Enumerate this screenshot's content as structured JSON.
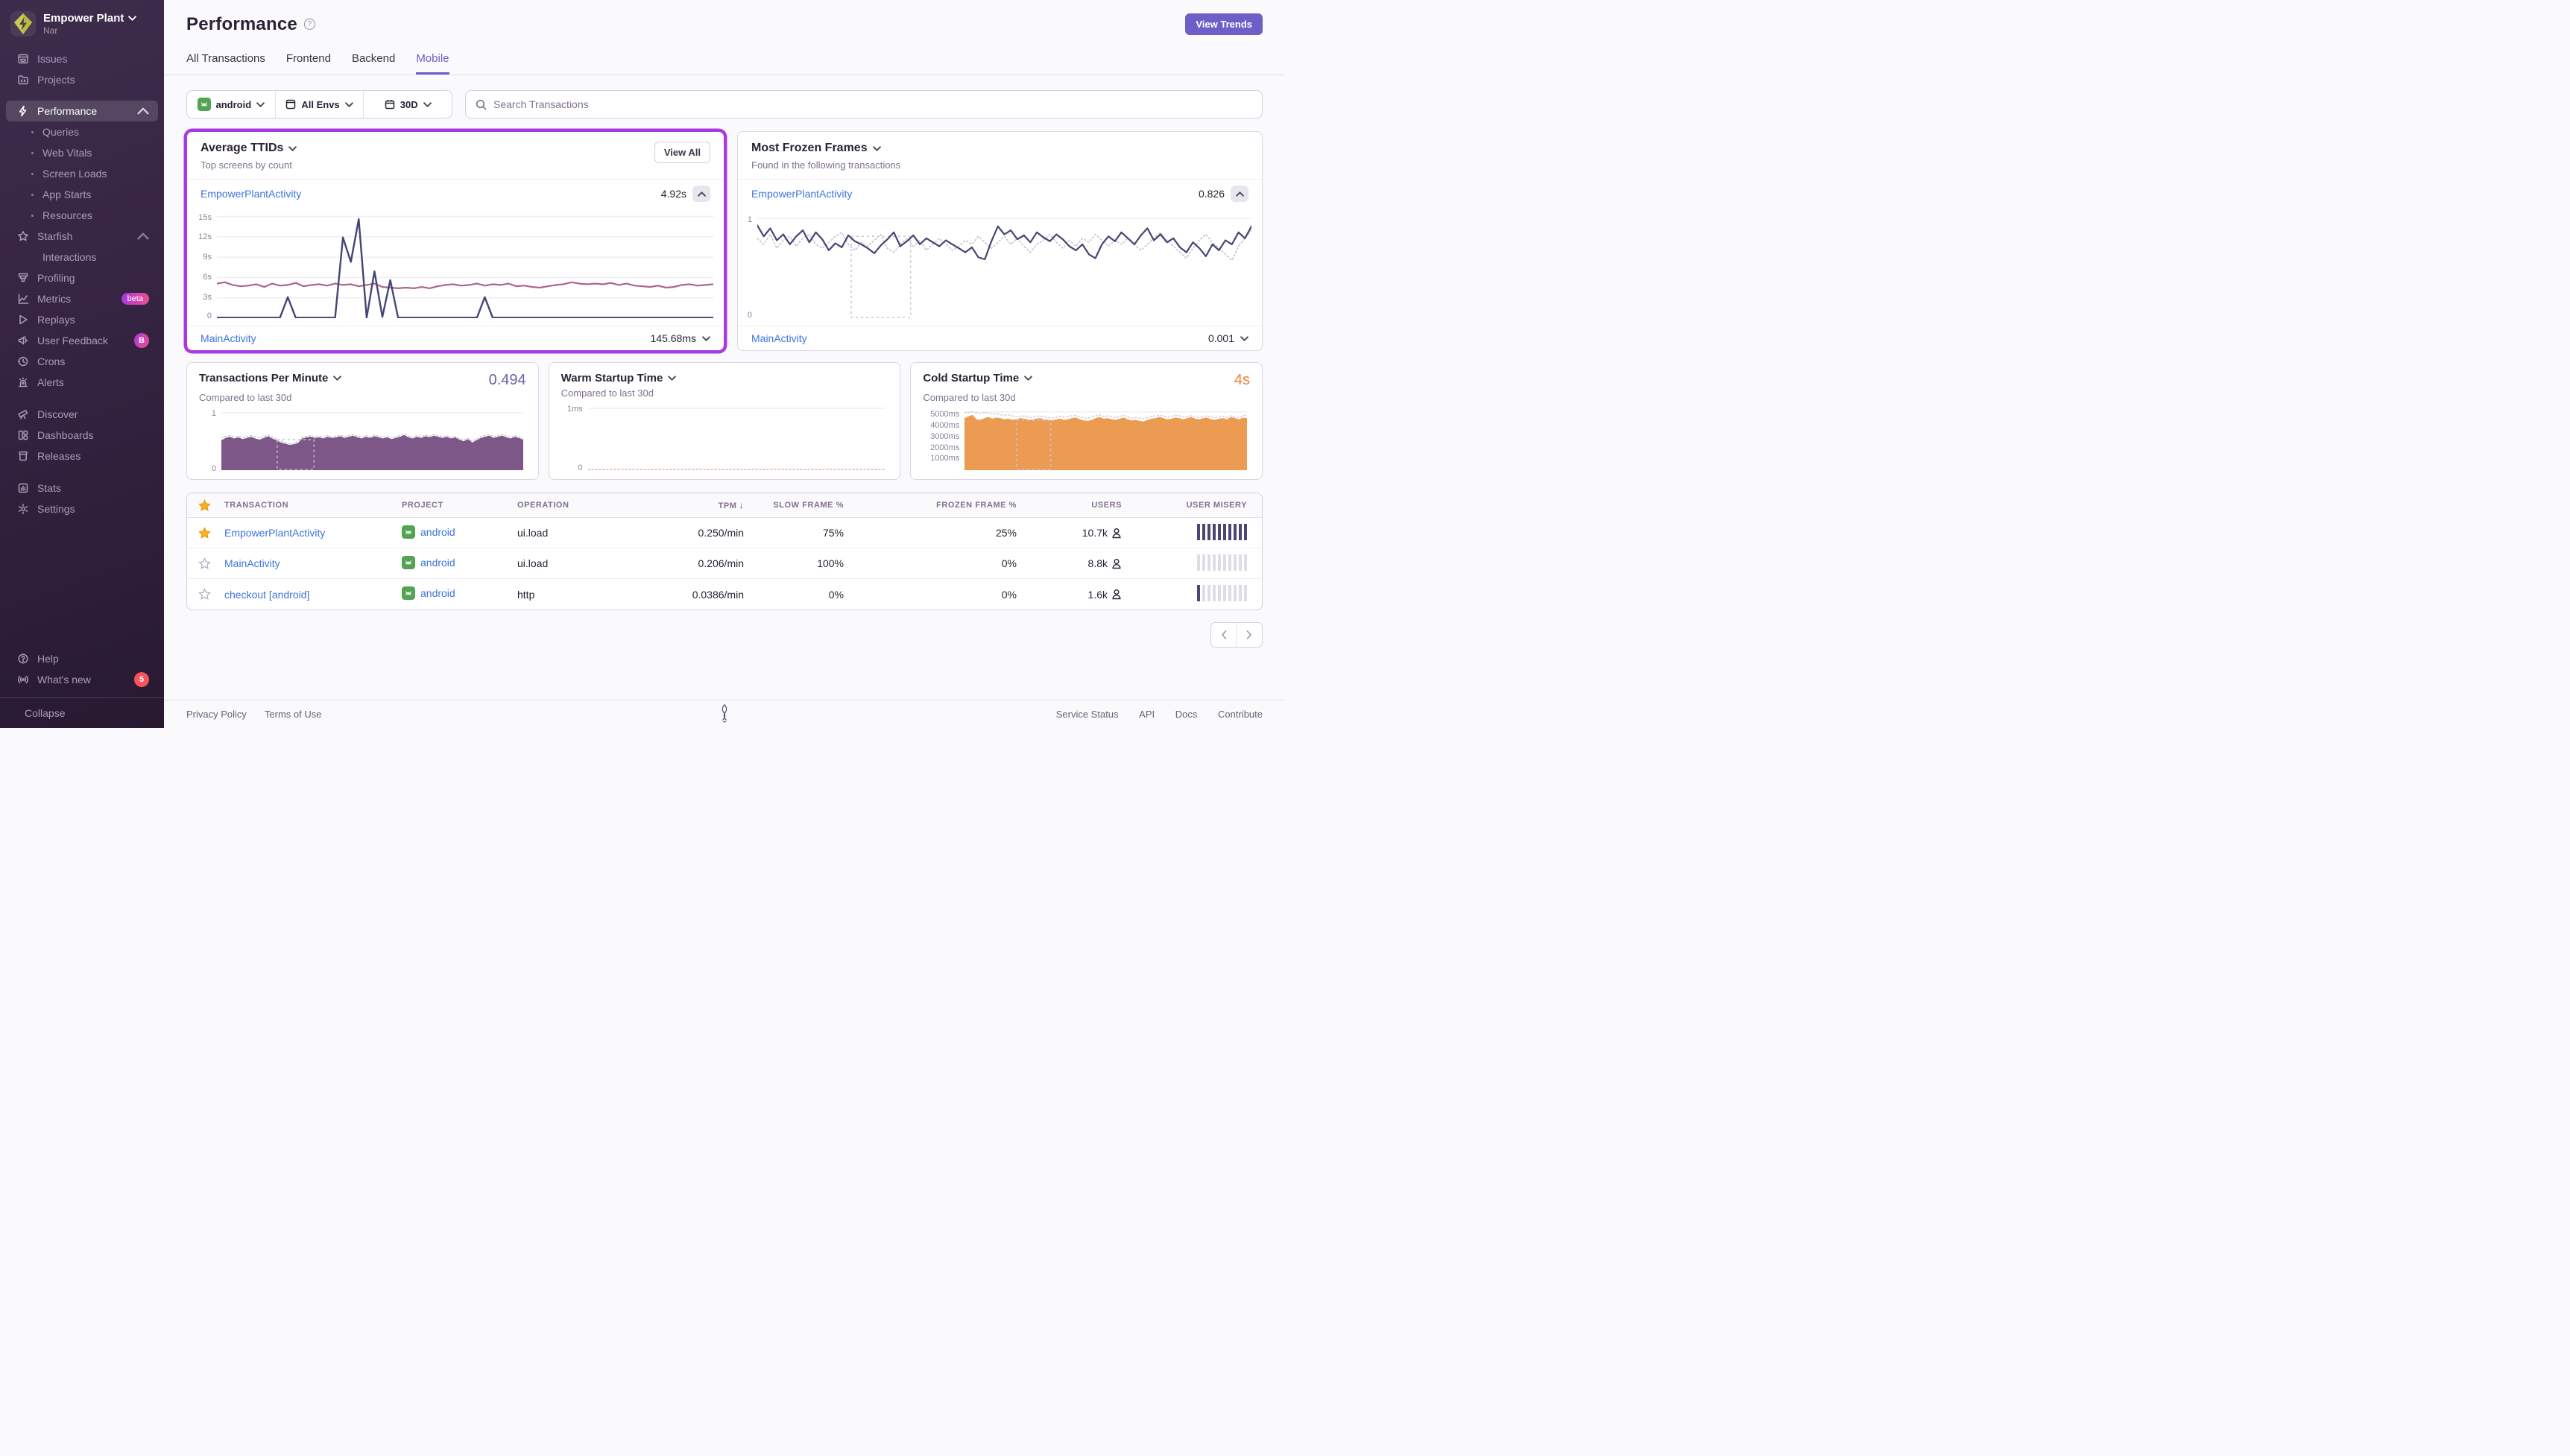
{
  "sidebar": {
    "org_name": "Empower Plant",
    "org_sub": "Nar",
    "nav": {
      "issues": "Issues",
      "projects": "Projects",
      "performance": "Performance",
      "perf_children": [
        "Queries",
        "Web Vitals",
        "Screen Loads",
        "App Starts",
        "Resources"
      ],
      "starfish": "Starfish",
      "starfish_children": [
        "Interactions"
      ],
      "profiling": "Profiling",
      "metrics": "Metrics",
      "metrics_badge": "beta",
      "replays": "Replays",
      "user_feedback": "User Feedback",
      "user_feedback_badge": "B",
      "crons": "Crons",
      "alerts": "Alerts",
      "discover": "Discover",
      "dashboards": "Dashboards",
      "releases": "Releases",
      "stats": "Stats",
      "settings": "Settings",
      "help": "Help",
      "whats_new": "What's new",
      "whats_new_badge": "5",
      "collapse": "Collapse"
    }
  },
  "header": {
    "title": "Performance",
    "tabs": [
      "All Transactions",
      "Frontend",
      "Backend",
      "Mobile"
    ],
    "view_trends": "View Trends"
  },
  "filters": {
    "project": "android",
    "env": "All Envs",
    "range": "30D",
    "search_placeholder": "Search Transactions"
  },
  "ttids": {
    "title": "Average TTIDs",
    "subtitle": "Top screens by count",
    "view_all": "View All",
    "rows": [
      {
        "name": "EmpowerPlantActivity",
        "value": "4.92s"
      },
      {
        "name": "MainActivity",
        "value": "145.68ms"
      }
    ],
    "y_labels": [
      "15s",
      "12s",
      "9s",
      "6s",
      "3s",
      "0"
    ]
  },
  "frozen": {
    "title": "Most Frozen Frames",
    "subtitle": "Found in the following transactions",
    "rows": [
      {
        "name": "EmpowerPlantActivity",
        "value": "0.826"
      },
      {
        "name": "MainActivity",
        "value": "0.001"
      }
    ],
    "y_labels": [
      "1",
      "0"
    ]
  },
  "cards": {
    "tpm": {
      "title": "Transactions Per Minute",
      "subtitle": "Compared to last 30d",
      "value": "0.494",
      "y_labels": [
        "1",
        "0"
      ]
    },
    "warm": {
      "title": "Warm Startup Time",
      "subtitle": "Compared to last 30d",
      "y_labels": [
        "1ms",
        "0"
      ]
    },
    "cold": {
      "title": "Cold Startup Time",
      "subtitle": "Compared to last 30d",
      "value": "4s",
      "y_labels": [
        "5000ms",
        "4000ms",
        "3000ms",
        "2000ms",
        "1000ms"
      ]
    }
  },
  "table": {
    "headers": [
      "TRANSACTION",
      "PROJECT",
      "OPERATION",
      "TPM",
      "SLOW FRAME %",
      "FROZEN FRAME %",
      "USERS",
      "USER MISERY"
    ],
    "sort_icon": "↓",
    "rows": [
      {
        "starred": true,
        "transaction": "EmpowerPlantActivity",
        "project": "android",
        "operation": "ui.load",
        "tpm": "0.250/min",
        "slow": "75%",
        "frozen": "25%",
        "users": "10.7k",
        "misery": 10
      },
      {
        "starred": false,
        "transaction": "MainActivity",
        "project": "android",
        "operation": "ui.load",
        "tpm": "0.206/min",
        "slow": "100%",
        "frozen": "0%",
        "users": "8.8k",
        "misery": 0
      },
      {
        "starred": false,
        "transaction": "checkout [android]",
        "project": "android",
        "operation": "http",
        "tpm": "0.0386/min",
        "slow": "0%",
        "frozen": "0%",
        "users": "1.6k",
        "misery": 1
      }
    ]
  },
  "footer": {
    "left": [
      "Privacy Policy",
      "Terms of Use"
    ],
    "right": [
      "Service Status",
      "API",
      "Docs",
      "Contribute"
    ]
  },
  "chart_data": {
    "avg_ttids": {
      "type": "line",
      "title": "Average TTIDs",
      "ylim": [
        0,
        15.6
      ],
      "gridlines": [
        3,
        6,
        9,
        12,
        15
      ],
      "y_tick_labels": [
        "15s",
        "12s",
        "9s",
        "6s",
        "3s",
        "0"
      ],
      "series": [
        {
          "name": "EmpowerPlantActivity",
          "color": "#b0638f",
          "width": 2.2,
          "values": [
            5.1,
            5.3,
            4.9,
            4.7,
            4.8,
            5.0,
            4.6,
            5.1,
            4.8,
            4.9,
            5.2,
            4.7,
            4.9,
            5.0,
            4.8,
            5.1,
            4.9,
            5.0,
            4.7,
            4.9,
            5.1,
            4.6,
            4.5,
            4.4,
            4.5,
            4.4,
            4.6,
            4.4,
            4.7,
            4.9,
            5.0,
            4.8,
            4.9,
            5.1,
            4.8,
            5.0,
            4.9,
            5.1,
            4.7,
            4.8,
            4.6,
            4.5,
            4.7,
            4.9,
            5.0,
            5.3,
            5.1,
            5.0,
            5.1,
            5.0,
            5.2,
            4.9,
            5.1,
            4.8,
            4.7,
            4.6,
            4.8,
            4.5,
            4.6,
            4.9,
            5.0,
            4.8,
            4.9,
            5.0
          ]
        },
        {
          "name": "MainActivity",
          "color": "#444674",
          "width": 2.4,
          "values": [
            0.08,
            0.08,
            0.08,
            0.08,
            0.08,
            0.08,
            0.08,
            0.08,
            0.08,
            3.1,
            0.08,
            0.08,
            0.08,
            0.08,
            0.08,
            0.08,
            11.9,
            8.3,
            14.6,
            0.08,
            6.9,
            0.2,
            5.6,
            0.08,
            0.08,
            0.08,
            0.08,
            0.08,
            0.08,
            0.08,
            0.08,
            0.08,
            0.08,
            0.08,
            3.1,
            0.08,
            0.08,
            0.08,
            0.08,
            0.08,
            0.08,
            0.08,
            0.08,
            0.08,
            0.08,
            0.08,
            0.08,
            0.08,
            0.08,
            0.08,
            0.08,
            0.08,
            0.08,
            0.08,
            0.08,
            0.08,
            0.08,
            0.08,
            0.08,
            0.08,
            0.08,
            0.08,
            0.08,
            0.08
          ]
        }
      ]
    },
    "frozen": {
      "type": "line",
      "title": "Most Frozen Frames",
      "ylim": [
        0,
        1.06
      ],
      "gridlines": [
        1
      ],
      "y_tick_labels": [
        "1",
        "0"
      ],
      "selection": {
        "x0": 0.19,
        "x1": 0.31,
        "top": 0.82
      },
      "series": [
        {
          "name": "baseline-dotted",
          "color": "#c6c0ce",
          "width": 1.5,
          "dash": "2 3",
          "values": [
            0.8,
            0.74,
            0.84,
            0.7,
            0.78,
            0.82,
            0.72,
            0.8,
            0.84,
            0.74,
            0.7,
            0.76,
            0.82,
            0.86,
            0.74,
            0.68,
            0.76,
            0.72,
            0.78,
            0.84,
            0.7,
            0.66,
            0.74,
            0.8,
            0.72,
            0.78,
            0.68,
            0.74,
            0.8,
            0.74,
            0.68,
            0.72,
            0.78,
            0.74,
            0.82,
            0.76,
            0.7,
            0.76,
            0.82,
            0.74,
            0.8,
            0.72,
            0.66,
            0.74,
            0.78,
            0.84,
            0.76,
            0.7,
            0.78,
            0.72,
            0.8,
            0.76,
            0.84,
            0.78,
            0.72,
            0.78,
            0.74,
            0.8,
            0.74,
            0.68,
            0.74,
            0.8,
            0.86,
            0.78,
            0.72,
            0.66,
            0.6,
            0.7,
            0.78,
            0.84,
            0.76,
            0.7,
            0.64,
            0.58,
            0.72,
            0.8,
            0.88
          ]
        },
        {
          "name": "EmpowerPlantActivity",
          "color": "#444674",
          "width": 2.2,
          "values": [
            0.93,
            0.82,
            0.9,
            0.78,
            0.84,
            0.74,
            0.82,
            0.88,
            0.76,
            0.86,
            0.79,
            0.68,
            0.75,
            0.71,
            0.83,
            0.77,
            0.74,
            0.7,
            0.65,
            0.73,
            0.79,
            0.86,
            0.72,
            0.77,
            0.83,
            0.74,
            0.8,
            0.76,
            0.72,
            0.78,
            0.74,
            0.7,
            0.66,
            0.71,
            0.61,
            0.59,
            0.77,
            0.92,
            0.84,
            0.88,
            0.79,
            0.83,
            0.76,
            0.86,
            0.81,
            0.77,
            0.84,
            0.79,
            0.72,
            0.68,
            0.74,
            0.64,
            0.6,
            0.74,
            0.82,
            0.77,
            0.86,
            0.8,
            0.74,
            0.83,
            0.9,
            0.78,
            0.84,
            0.76,
            0.8,
            0.71,
            0.66,
            0.76,
            0.7,
            0.62,
            0.74,
            0.68,
            0.78,
            0.74,
            0.86,
            0.8,
            0.92
          ]
        }
      ]
    },
    "tpm": {
      "type": "area",
      "title": "Transactions Per Minute",
      "ylim": [
        0,
        1.06
      ],
      "gridlines": [
        1
      ],
      "y_tick_labels": [
        "1",
        "0"
      ],
      "selection": {
        "x0": 0.185,
        "x1": 0.307,
        "top": 0.53
      },
      "series": [
        {
          "name": "tpm",
          "color": "#7c5788",
          "fill": true,
          "values": [
            0.52,
            0.56,
            0.58,
            0.55,
            0.57,
            0.54,
            0.56,
            0.58,
            0.55,
            0.53,
            0.56,
            0.59,
            0.55,
            0.52,
            0.48,
            0.46,
            0.44,
            0.45,
            0.47,
            0.55,
            0.57,
            0.58,
            0.56,
            0.57,
            0.55,
            0.58,
            0.56,
            0.57,
            0.59,
            0.56,
            0.58,
            0.6,
            0.57,
            0.55,
            0.58,
            0.56,
            0.59,
            0.57,
            0.55,
            0.57,
            0.54,
            0.56,
            0.58,
            0.61,
            0.57,
            0.55,
            0.58,
            0.56,
            0.59,
            0.57,
            0.6,
            0.58,
            0.56,
            0.58,
            0.55,
            0.57,
            0.53,
            0.5,
            0.54,
            0.48,
            0.52,
            0.56,
            0.58,
            0.6,
            0.56,
            0.58,
            0.6,
            0.57,
            0.55,
            0.58,
            0.56,
            0.53
          ]
        },
        {
          "name": "tpm-dotted",
          "color": "#cfc9d6",
          "width": 1.5,
          "dash": "2 3",
          "values": [
            0.56,
            0.59,
            0.6,
            0.58,
            0.59,
            0.57,
            0.58,
            0.6,
            0.58,
            0.56,
            0.58,
            0.61,
            0.57,
            0.54,
            0.5,
            0.48,
            0.46,
            0.47,
            0.5,
            0.57,
            0.59,
            0.6,
            0.58,
            0.59,
            0.57,
            0.6,
            0.58,
            0.59,
            0.61,
            0.58,
            0.6,
            0.62,
            0.59,
            0.57,
            0.6,
            0.58,
            0.61,
            0.59,
            0.57,
            0.59,
            0.56,
            0.58,
            0.6,
            0.63,
            0.59,
            0.57,
            0.6,
            0.58,
            0.61,
            0.59,
            0.62,
            0.6,
            0.58,
            0.6,
            0.57,
            0.59,
            0.55,
            0.52,
            0.56,
            0.5,
            0.54,
            0.58,
            0.6,
            0.62,
            0.58,
            0.6,
            0.62,
            0.59,
            0.57,
            0.6,
            0.58,
            0.55
          ]
        }
      ]
    },
    "warm": {
      "type": "line",
      "title": "Warm Startup Time",
      "ylim": [
        0,
        1.06
      ],
      "gridlines": [
        1
      ],
      "y_tick_labels": [
        "1ms",
        "0"
      ],
      "series": [
        {
          "name": "zero-baseline",
          "color": "#d8b3ae",
          "width": 1.5,
          "dash": "2 3",
          "values": [
            0.012,
            0.012
          ]
        }
      ]
    },
    "cold": {
      "type": "area",
      "title": "Cold Startup Time",
      "ylim": [
        0,
        5400
      ],
      "gridlines": [
        5150
      ],
      "y_tick_labels": [
        "5000ms",
        "4000ms",
        "3000ms",
        "2000ms",
        "1000ms"
      ],
      "selection": {
        "x0": 0.185,
        "x1": 0.305,
        "top": 4420
      },
      "series": [
        {
          "name": "cold",
          "color": "#ec9b53",
          "fill": true,
          "values": [
            4600,
            4750,
            4900,
            4500,
            4450,
            4600,
            4700,
            4550,
            4650,
            4600,
            4500,
            4550,
            4450,
            4500,
            4600,
            4550,
            4500,
            4450,
            4550,
            4600,
            4500,
            4450,
            4400,
            4500,
            4550,
            4450,
            4500,
            4600,
            4650,
            4500,
            4400,
            4350,
            4450,
            4600,
            4700,
            4550,
            4600,
            4500,
            4450,
            4550,
            4650,
            4500,
            4400,
            4450,
            4350,
            4300,
            4450,
            4550,
            4600,
            4700,
            4600,
            4500,
            4550,
            4650,
            4600,
            4500,
            4600,
            4700,
            4550,
            4500,
            4600,
            4650,
            4500,
            4450,
            4550,
            4600,
            4500,
            4700,
            4600,
            4500,
            4650,
            4600
          ]
        },
        {
          "name": "cold-dotted",
          "color": "#d4cfda",
          "width": 1.5,
          "dash": "2 3",
          "values": [
            5050,
            5100,
            5150,
            5050,
            5000,
            5100,
            5050,
            4950,
            5000,
            4900,
            4850,
            4900,
            4800,
            4700,
            4750,
            4800,
            4700,
            4650,
            4750,
            4800,
            4700,
            4650,
            4600,
            4700,
            4750,
            4700,
            4750,
            4800,
            4850,
            4700,
            4650,
            4600,
            4700,
            4800,
            4900,
            4750,
            4800,
            4700,
            4650,
            4750,
            4850,
            4700,
            4600,
            4650,
            4600,
            4550,
            4650,
            4750,
            4800,
            4850,
            4800,
            4700,
            4750,
            4850,
            4800,
            4700,
            4750,
            4800,
            4700,
            4650,
            4750,
            4800,
            4700,
            4650,
            4700,
            4750,
            4650,
            4800,
            4700,
            4650,
            4800,
            4900
          ]
        }
      ]
    }
  }
}
